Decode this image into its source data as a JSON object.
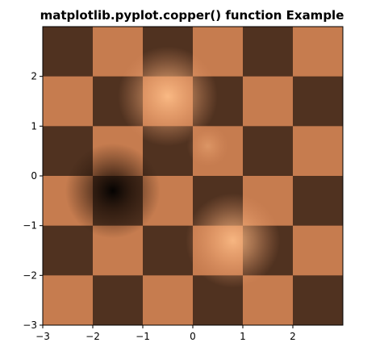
{
  "chart_data": {
    "type": "heatmap",
    "title": "matplotlib.pyplot.copper() function Example",
    "xlabel": "",
    "ylabel": "",
    "colormap": "copper",
    "xlim": [
      -3,
      3
    ],
    "ylim": [
      -3,
      3
    ],
    "grid": false,
    "xticks": [
      -3,
      -2,
      -1,
      0,
      1,
      2
    ],
    "yticks": [
      -3,
      -2,
      -1,
      0,
      1,
      2
    ],
    "xtick_labels": [
      "−3",
      "−2",
      "−1",
      "0",
      "1",
      "2"
    ],
    "ytick_labels": [
      "−3",
      "−2",
      "−1",
      "0",
      "1",
      "2"
    ],
    "checkerboard": {
      "extent": [
        -3,
        3,
        -3,
        3
      ],
      "rows": 6,
      "cols": 6,
      "dark_value": 0.25,
      "light_value": 0.62
    },
    "gaussian_overlay": {
      "extent": [
        -3,
        3,
        -3,
        3
      ],
      "bright_peaks": [
        {
          "x": -0.5,
          "y": 1.6,
          "amp": 0.95
        },
        {
          "x": 0.8,
          "y": -1.3,
          "amp": 0.9
        },
        {
          "x": 0.3,
          "y": 0.6,
          "amp": 0.4
        }
      ],
      "dark_peaks": [
        {
          "x": -1.6,
          "y": -0.3,
          "amp": 1.0
        }
      ]
    }
  }
}
